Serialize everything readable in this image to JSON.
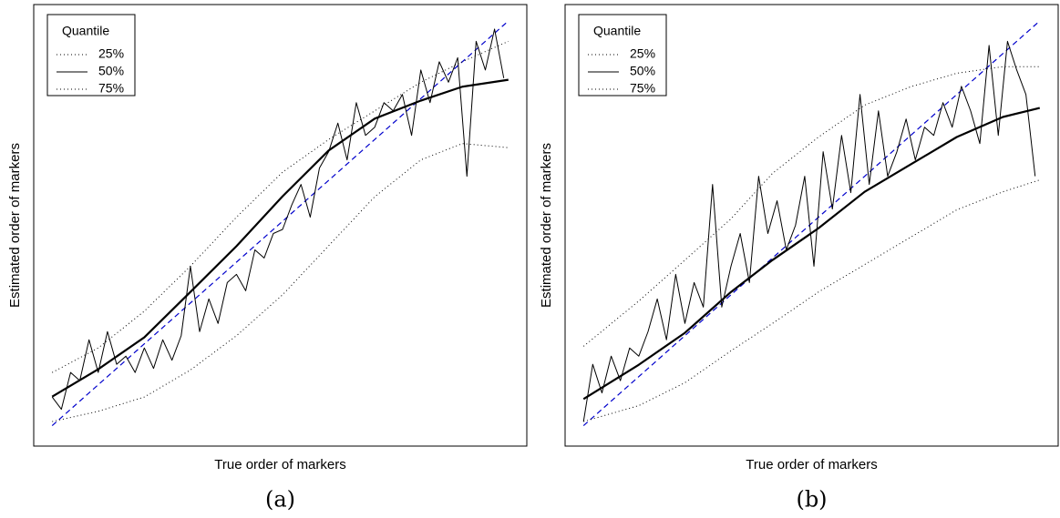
{
  "chart_data": [
    {
      "type": "line",
      "x_label": "True order of markers",
      "y_label": "Estimated order of markers",
      "caption": "(a)",
      "legend_title": "Quantile",
      "legend_position": "upper left",
      "identity_line": true,
      "identity_color": "#0000cc",
      "xlim": [
        -3,
        104
      ],
      "ylim": [
        -4,
        104
      ],
      "series": [
        {
          "name": "25%",
          "color": "#000000",
          "line_style": "dotted",
          "width": 1,
          "x": [
            1,
            11,
            21,
            31,
            41,
            51,
            61,
            71,
            81,
            90,
            100
          ],
          "values": [
            2,
            4.5,
            8,
            14.6,
            23,
            33,
            45,
            57,
            66,
            70,
            69
          ]
        },
        {
          "name": "50%",
          "color": "#000000",
          "line_style": "solid",
          "width": 1,
          "x": [
            1,
            3,
            5,
            7,
            9,
            11,
            13,
            15,
            17,
            19,
            21,
            23,
            25,
            27,
            29,
            31,
            33,
            35,
            37,
            39,
            41,
            43,
            45,
            47,
            49,
            51,
            53,
            55,
            57,
            59,
            61,
            63,
            65,
            67,
            69,
            71,
            73,
            75,
            77,
            79,
            81,
            83,
            85,
            87,
            89,
            91,
            93,
            95,
            97,
            99
          ],
          "values": [
            8,
            5,
            14,
            12,
            22,
            14,
            24,
            16,
            18,
            14,
            20,
            15,
            22,
            17,
            23,
            40,
            24,
            32,
            26,
            36,
            38,
            34,
            44,
            42,
            48,
            49,
            55,
            60,
            52,
            64,
            68,
            75,
            66,
            80,
            72,
            74,
            80,
            78,
            82,
            72,
            88,
            80,
            90,
            85,
            91,
            62,
            95,
            88,
            98,
            86
          ]
        },
        {
          "name": "75%",
          "color": "#000000",
          "line_style": "dotted",
          "width": 1,
          "x": [
            1,
            11,
            21,
            31,
            41,
            51,
            61,
            71,
            81,
            90,
            100
          ],
          "values": [
            14,
            20,
            29,
            40,
            52,
            63,
            71,
            78,
            85,
            90,
            95
          ]
        },
        {
          "color": "#000000",
          "line_style": "solid",
          "width": 2.2,
          "x": [
            1,
            11,
            21,
            31,
            41,
            51,
            61,
            71,
            81,
            90,
            100
          ],
          "values": [
            8.1,
            14.8,
            22.6,
            33.7,
            44.9,
            57.1,
            68.3,
            76.1,
            80.5,
            83.9,
            85.6
          ]
        }
      ]
    },
    {
      "type": "line",
      "x_label": "True order of markers",
      "y_label": "Estimated order of markers",
      "caption": "(b)",
      "legend_title": "Quantile",
      "legend_position": "upper left",
      "identity_line": true,
      "identity_color": "#0000cc",
      "xlim": [
        -3,
        104
      ],
      "ylim": [
        -4,
        104
      ],
      "series": [
        {
          "name": "25%",
          "color": "#000000",
          "line_style": "dotted",
          "width": 1,
          "x": [
            1,
            13,
            23,
            33,
            42,
            52,
            62,
            72,
            82,
            92,
            100
          ],
          "values": [
            2,
            5.9,
            11.5,
            19.3,
            26,
            33.7,
            40.4,
            47.1,
            53.8,
            58.2,
            61.1
          ]
        },
        {
          "name": "50%",
          "color": "#000000",
          "line_style": "solid",
          "width": 1,
          "x": [
            1,
            3,
            5,
            7,
            9,
            11,
            13,
            15,
            17,
            19,
            21,
            23,
            25,
            27,
            29,
            31,
            33,
            35,
            37,
            39,
            41,
            43,
            45,
            47,
            49,
            51,
            53,
            55,
            57,
            59,
            61,
            63,
            65,
            67,
            69,
            71,
            73,
            75,
            77,
            79,
            81,
            83,
            85,
            87,
            89,
            91,
            93,
            95,
            97,
            99
          ],
          "values": [
            2,
            16,
            9,
            18,
            12,
            20,
            18,
            24,
            32,
            22,
            38,
            26,
            36,
            30,
            60,
            30,
            40,
            48,
            36,
            62,
            48,
            56,
            44,
            50,
            62,
            40,
            68,
            54,
            72,
            58,
            82,
            60,
            78,
            62,
            68,
            76,
            66,
            74,
            72,
            80,
            74,
            84,
            78,
            70,
            94,
            72,
            95,
            88,
            82,
            62
          ]
        },
        {
          "name": "75%",
          "color": "#000000",
          "line_style": "dotted",
          "width": 1,
          "x": [
            1,
            13,
            23,
            33,
            42,
            52,
            62,
            72,
            82,
            92,
            100
          ],
          "values": [
            20.4,
            31.5,
            41.5,
            51.6,
            62.7,
            71.6,
            79.4,
            83.9,
            87.2,
            88.8,
            88.8
          ]
        },
        {
          "color": "#000000",
          "line_style": "solid",
          "width": 2.2,
          "x": [
            1,
            13,
            23,
            33,
            42,
            52,
            62,
            72,
            82,
            92,
            100
          ],
          "values": [
            7.5,
            15.9,
            23.7,
            33.7,
            41.5,
            49.3,
            58.2,
            64.9,
            71.6,
            76.5,
            78.7
          ]
        }
      ]
    }
  ]
}
